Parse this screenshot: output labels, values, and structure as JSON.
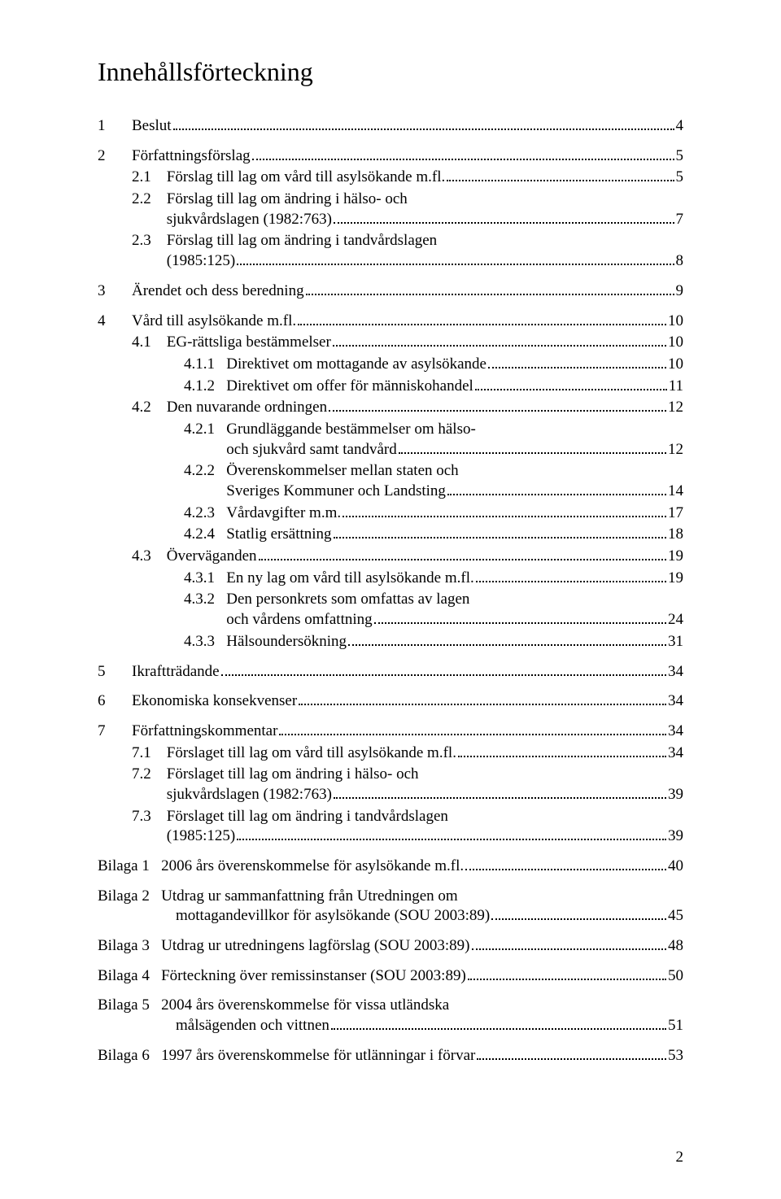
{
  "title": "Innehållsförteckning",
  "entries": [
    {
      "type": "row",
      "indent": "l1",
      "num": "1",
      "numClass": "num-l1",
      "label": "Beslut",
      "page": "4"
    },
    {
      "type": "gap"
    },
    {
      "type": "row",
      "indent": "l1",
      "num": "2",
      "numClass": "num-l1",
      "label": "Författningsförslag",
      "page": "5"
    },
    {
      "type": "row",
      "indent": "l2",
      "num": "2.1    ",
      "label": "Förslag till lag om vård till asylsökande m.fl.",
      "page": "5"
    },
    {
      "type": "multi",
      "indent": "l2",
      "num": "2.2    ",
      "lines": [
        "Förslag till lag om ändring i hälso- och"
      ],
      "lastLine": "sjukvårdslagen (1982:763)",
      "page": "7"
    },
    {
      "type": "multi",
      "indent": "l2",
      "num": "2.3    ",
      "lines": [
        "Förslag till lag om ändring i tandvårdslagen"
      ],
      "lastLine": "(1985:125)",
      "page": "8"
    },
    {
      "type": "gap"
    },
    {
      "type": "row",
      "indent": "l1",
      "num": "3",
      "numClass": "num-l1",
      "label": "Ärendet och dess beredning",
      "page": "9"
    },
    {
      "type": "gap"
    },
    {
      "type": "row",
      "indent": "l1",
      "num": "4",
      "numClass": "num-l1",
      "label": "Vård till asylsökande m.fl.",
      "page": "10"
    },
    {
      "type": "row",
      "indent": "l2",
      "num": "4.1    ",
      "label": "EG-rättsliga bestämmelser",
      "page": "10"
    },
    {
      "type": "row",
      "indent": "l3",
      "num": "4.1.1   ",
      "label": "Direktivet om mottagande av asylsökande",
      "page": "10"
    },
    {
      "type": "row",
      "indent": "l3",
      "num": "4.1.2   ",
      "label": "Direktivet om offer för människohandel",
      "page": "11"
    },
    {
      "type": "row",
      "indent": "l2",
      "num": "4.2    ",
      "label": "Den nuvarande ordningen",
      "page": "12"
    },
    {
      "type": "multi",
      "indent": "l3",
      "num": "4.2.1   ",
      "lines": [
        "Grundläggande bestämmelser om hälso-"
      ],
      "lastLine": "och sjukvård samt tandvård",
      "page": "12"
    },
    {
      "type": "multi",
      "indent": "l3",
      "num": "4.2.2   ",
      "lines": [
        "Överenskommelser mellan staten och"
      ],
      "lastLine": "Sveriges Kommuner och Landsting",
      "page": "14"
    },
    {
      "type": "row",
      "indent": "l3",
      "num": "4.2.3   ",
      "label": "Vårdavgifter m.m. ",
      "page": "17"
    },
    {
      "type": "row",
      "indent": "l3",
      "num": "4.2.4   ",
      "label": "Statlig ersättning",
      "page": "18"
    },
    {
      "type": "row",
      "indent": "l2",
      "num": "4.3    ",
      "label": "Överväganden",
      "page": "19"
    },
    {
      "type": "row",
      "indent": "l3",
      "num": "4.3.1   ",
      "label": "En ny lag om vård till asylsökande m.fl. ",
      "page": "19"
    },
    {
      "type": "multi",
      "indent": "l3",
      "num": "4.3.2   ",
      "lines": [
        "Den personkrets som omfattas av lagen"
      ],
      "lastLine": "och vårdens omfattning",
      "page": "24"
    },
    {
      "type": "row",
      "indent": "l3",
      "num": "4.3.3   ",
      "label": "Hälsoundersökning",
      "page": "31"
    },
    {
      "type": "gap"
    },
    {
      "type": "row",
      "indent": "l1",
      "num": "5",
      "numClass": "num-l1",
      "label": "Ikraftträdande",
      "page": "34"
    },
    {
      "type": "gap"
    },
    {
      "type": "row",
      "indent": "l1",
      "num": "6",
      "numClass": "num-l1",
      "label": "Ekonomiska konsekvenser",
      "page": "34"
    },
    {
      "type": "gap"
    },
    {
      "type": "row",
      "indent": "l1",
      "num": "7",
      "numClass": "num-l1",
      "label": "Författningskommentar",
      "page": "34"
    },
    {
      "type": "row",
      "indent": "l2",
      "num": "7.1    ",
      "label": "Förslaget till lag om vård till asylsökande m.fl.",
      "page": "34"
    },
    {
      "type": "multi",
      "indent": "l2",
      "num": "7.2    ",
      "lines": [
        "Förslaget till lag om ändring i hälso- och"
      ],
      "lastLine": "sjukvårdslagen (1982:763)",
      "page": "39"
    },
    {
      "type": "multi",
      "indent": "l2",
      "num": "7.3    ",
      "lines": [
        "Förslaget till lag om ändring i tandvårdslagen"
      ],
      "lastLine": "(1985:125)",
      "page": "39"
    },
    {
      "type": "gap"
    },
    {
      "type": "row",
      "indent": "l1",
      "num": "Bilaga 1   ",
      "label": "2006 års överenskommelse för asylsökande m.fl. ",
      "page": "40"
    },
    {
      "type": "gap"
    },
    {
      "type": "multi",
      "indent": "l1",
      "num": "Bilaga 2   ",
      "lines": [
        "Utdrag ur sammanfattning från Utredningen om"
      ],
      "lastLine": "mottagandevillkor för asylsökande (SOU 2003:89)",
      "contIndent": "bilaga",
      "page": "45"
    },
    {
      "type": "gap"
    },
    {
      "type": "row",
      "indent": "l1",
      "num": "Bilaga 3   ",
      "label": "Utdrag ur utredningens lagförslag (SOU 2003:89)",
      "page": "48"
    },
    {
      "type": "gap"
    },
    {
      "type": "row",
      "indent": "l1",
      "num": "Bilaga 4   ",
      "label": "Förteckning över remissinstanser (SOU 2003:89)",
      "page": "50"
    },
    {
      "type": "gap"
    },
    {
      "type": "multi",
      "indent": "l1",
      "num": "Bilaga 5   ",
      "lines": [
        "2004 års överenskommelse för vissa utländska"
      ],
      "lastLine": "målsägenden och vittnen",
      "contIndent": "bilaga",
      "page": "51"
    },
    {
      "type": "gap"
    },
    {
      "type": "row",
      "indent": "l1",
      "num": "Bilaga 6   ",
      "label": "1997 års överenskommelse för utlänningar i förvar",
      "page": "53"
    }
  ],
  "footerPage": "2"
}
